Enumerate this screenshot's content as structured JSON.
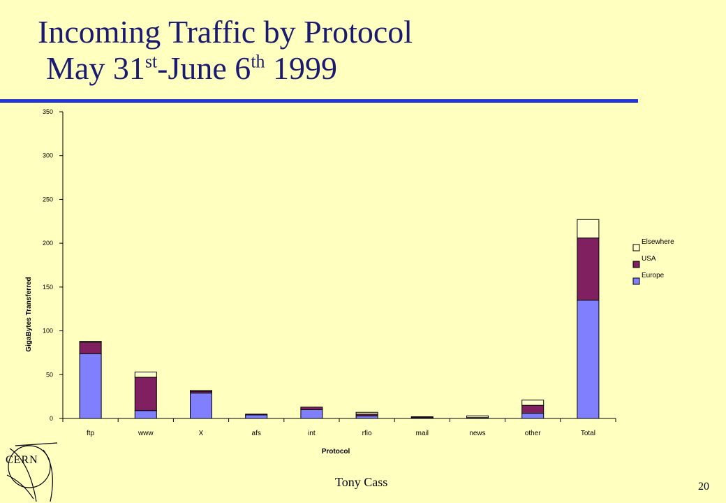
{
  "slide": {
    "title_line1": "Incoming Traffic by Protocol",
    "title_line2_a": "May 31",
    "title_line2_sup1": "st",
    "title_line2_b": "-June 6",
    "title_line2_sup2": "th",
    "title_line2_c": " 1999",
    "author": "Tony Cass",
    "page_number": "20",
    "logo_text": "CERN",
    "accent_color": "#1f33d8",
    "title_color": "#1a1a70",
    "background_color": "#ffffc0"
  },
  "chart_data": {
    "type": "bar",
    "stacked": true,
    "xlabel": "Protocol",
    "ylabel": "GigaBytes Transferred",
    "ylim": [
      0,
      350
    ],
    "yticks": [
      0,
      50,
      100,
      150,
      200,
      250,
      300,
      350
    ],
    "categories": [
      "ftp",
      "www",
      "X",
      "afs",
      "int",
      "rfio",
      "mail",
      "news",
      "other",
      "Total"
    ],
    "series": [
      {
        "name": "Europe",
        "color": "#8080ff",
        "values": [
          74,
          9,
          29,
          4,
          10,
          3,
          1,
          1,
          6,
          135
        ]
      },
      {
        "name": "USA",
        "color": "#802060",
        "values": [
          13,
          38,
          2,
          1,
          3,
          2,
          1,
          0,
          9,
          71
        ]
      },
      {
        "name": "Elsewhere",
        "color": "#ffffcc",
        "values": [
          1,
          6,
          1,
          0,
          0,
          2,
          0,
          2,
          6,
          21
        ]
      }
    ],
    "legend_position": "right",
    "grid": false
  }
}
